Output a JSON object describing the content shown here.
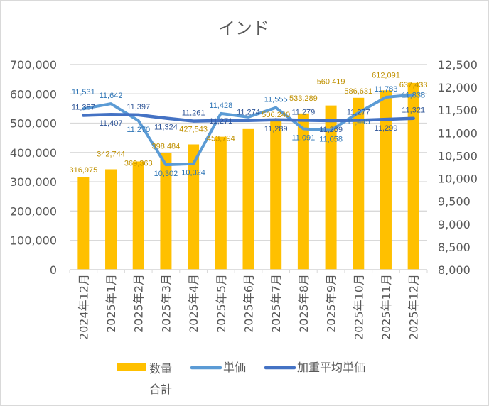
{
  "chart_data": {
    "type": "bar+line",
    "title": "インド",
    "categories": [
      "2024年12月",
      "2025年1月",
      "2025年2月",
      "2025年3月",
      "2025年4月",
      "2025年5月",
      "2025年6月",
      "2025年7月",
      "2025年8月",
      "2025年9月",
      "2025年10月",
      "2025年11月",
      "2025年12月"
    ],
    "series": [
      {
        "name": "数量合計",
        "type": "bar",
        "axis": "left",
        "color": "#FFC000",
        "label_color": "#BF9000",
        "values": [
          316975,
          342744,
          369363,
          398484,
          427543,
          453794,
          480000,
          506240,
          533289,
          560419,
          586631,
          612091,
          637433
        ],
        "labels": [
          "316,975",
          "342,744",
          "369,363",
          "398,484",
          "427,543",
          "453,794",
          "",
          "506,240",
          "533,289",
          "560,419",
          "586,631",
          "612,091",
          "637,433"
        ]
      },
      {
        "name": "単価",
        "type": "line",
        "axis": "right",
        "color": "#5B9BD5",
        "label_color": "#2E75B6",
        "values": [
          11531,
          11642,
          11270,
          10302,
          10324,
          11428,
          11350,
          11555,
          11091,
          11058,
          11445,
          11783,
          11838
        ],
        "labels": [
          "11,531",
          "11,642",
          "11,270",
          "10,302",
          "10,324",
          "11,428",
          "",
          "11,555",
          "11,091",
          "11,058",
          "11,445",
          "11,783",
          "11,838"
        ]
      },
      {
        "name": "加重平均単価",
        "type": "line",
        "axis": "right",
        "color": "#4472C4",
        "label_color": "#2F5597",
        "values": [
          11387,
          11407,
          11397,
          11324,
          11261,
          11271,
          11274,
          11289,
          11279,
          11269,
          11277,
          11299,
          11321
        ],
        "labels": [
          "11,387",
          "11,407",
          "11,397",
          "11,324",
          "11,261",
          "11,271",
          "11,274",
          "11,289",
          "11,279",
          "11,269",
          "11,277",
          "11,299",
          "11,321"
        ]
      }
    ],
    "y_left": {
      "min": 0,
      "max": 700000,
      "ticks": [
        "0",
        "100,000",
        "200,000",
        "300,000",
        "400,000",
        "500,000",
        "600,000",
        "700,000"
      ]
    },
    "y_right": {
      "min": 8000,
      "max": 12500,
      "ticks": [
        "8,000",
        "8,500",
        "9,000",
        "9,500",
        "10,000",
        "10,500",
        "11,000",
        "11,500",
        "12,000",
        "12,500"
      ]
    },
    "grid": true,
    "legend": {
      "position": "bottom",
      "items": [
        "数量合計",
        "単価",
        "加重平均単価"
      ]
    }
  }
}
